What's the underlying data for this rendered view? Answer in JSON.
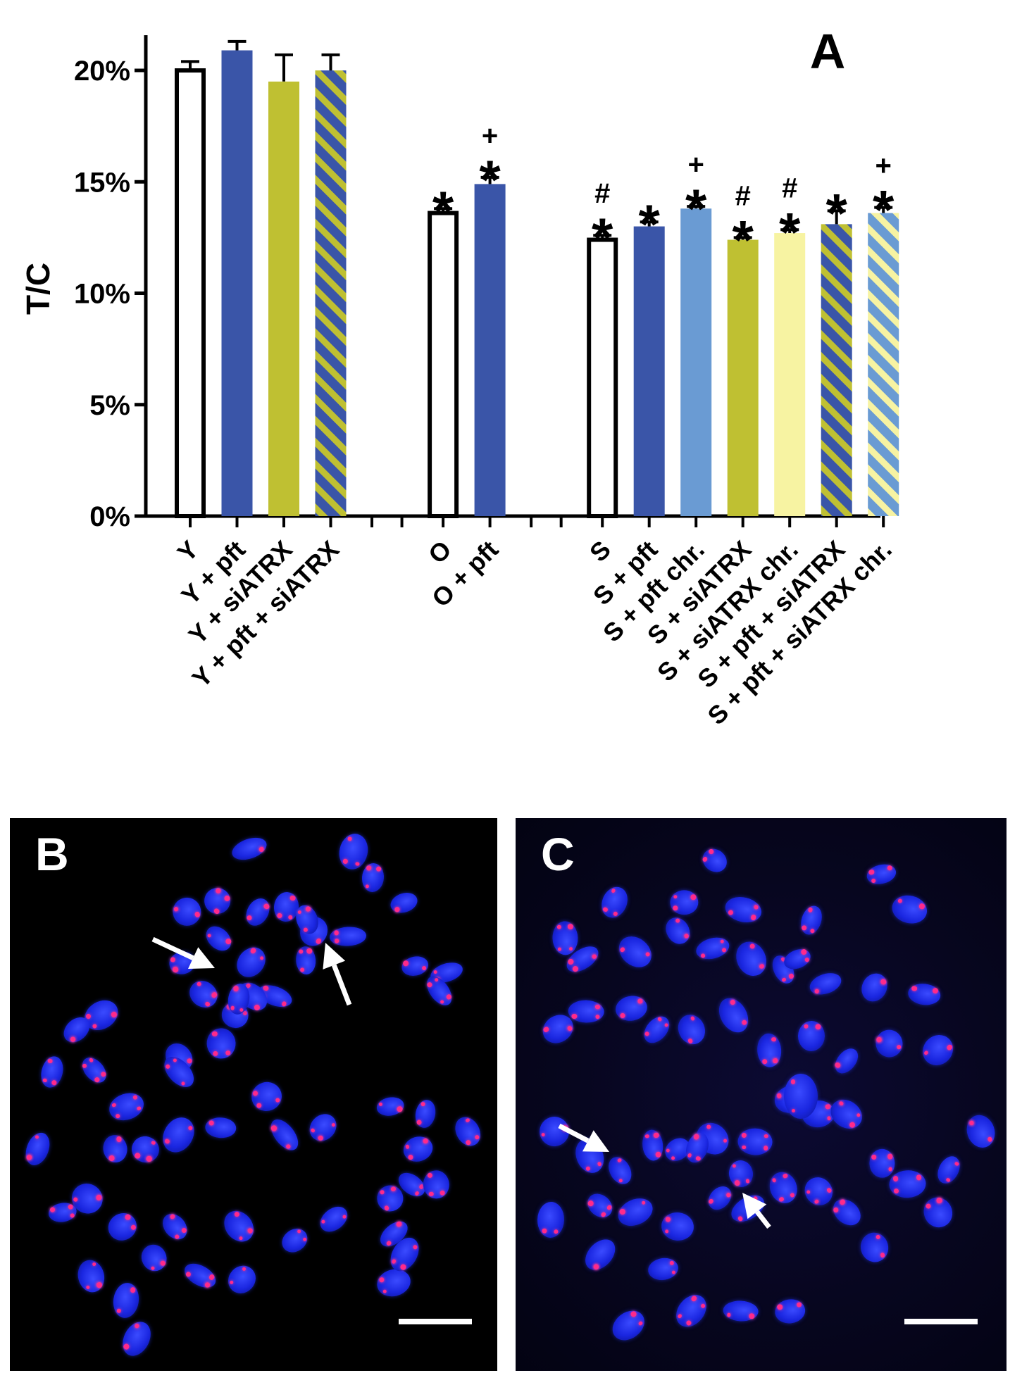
{
  "chart_data": {
    "type": "bar",
    "title": "A",
    "ylabel": "T/C",
    "ylim": [
      0,
      20
    ],
    "yticks": [
      "0%",
      "5%",
      "10%",
      "15%",
      "20%"
    ],
    "grid": false,
    "categories": [
      "Y",
      "Y + pft",
      "Y + siATRX",
      "Y + pft + siATRX",
      "O",
      "O + pft",
      "S",
      "S + pft",
      "S + pft chr.",
      "S + siATRX",
      "S + siATRX chr.",
      "S + pft + siATRX",
      "S + pft + siATRX chr."
    ],
    "groups": [
      [
        0,
        1,
        2,
        3
      ],
      [
        4,
        5
      ],
      [
        6,
        7,
        8,
        9,
        10,
        11,
        12
      ]
    ],
    "values": [
      20.0,
      20.9,
      19.5,
      20.0,
      13.6,
      14.9,
      12.4,
      13.0,
      13.8,
      12.4,
      12.7,
      13.1,
      13.6
    ],
    "errors": [
      0.4,
      0.4,
      1.2,
      0.7,
      0.2,
      0.3,
      0.2,
      0.2,
      0.1,
      0.1,
      0.15,
      0.6,
      0.25
    ],
    "annotations": [
      "",
      "",
      "",
      "",
      "*",
      "+\n*",
      "#\n*",
      "*",
      "+\n*",
      "#\n*",
      "#\n*",
      "*",
      "+\n*"
    ],
    "styles": [
      {
        "fill": "#ffffff",
        "stroke": "#000000",
        "hatch": ""
      },
      {
        "fill": "#3a55a8",
        "stroke": "#3a55a8",
        "hatch": ""
      },
      {
        "fill": "#bfc032",
        "stroke": "#bfc032",
        "hatch": ""
      },
      {
        "fill": "#3a55a8",
        "stroke": "#3a55a8",
        "hatch": "#bfc032"
      },
      {
        "fill": "#ffffff",
        "stroke": "#000000",
        "hatch": ""
      },
      {
        "fill": "#3a55a8",
        "stroke": "#3a55a8",
        "hatch": ""
      },
      {
        "fill": "#ffffff",
        "stroke": "#000000",
        "hatch": ""
      },
      {
        "fill": "#3a55a8",
        "stroke": "#3a55a8",
        "hatch": ""
      },
      {
        "fill": "#6a9bd3",
        "stroke": "#6a9bd3",
        "hatch": ""
      },
      {
        "fill": "#bfc032",
        "stroke": "#bfc032",
        "hatch": ""
      },
      {
        "fill": "#f7f3a2",
        "stroke": "#f7f3a2",
        "hatch": ""
      },
      {
        "fill": "#3a55a8",
        "stroke": "#3a55a8",
        "hatch": "#bfc032"
      },
      {
        "fill": "#6a9bd3",
        "stroke": "#6a9bd3",
        "hatch": "#f7f3a2"
      }
    ]
  },
  "panels": {
    "b": {
      "label": "B"
    },
    "c": {
      "label": "C"
    }
  },
  "colors": {
    "chromosome": "#2030e8",
    "telomere_signal": "#ff2a8a",
    "arrow": "#ffffff"
  }
}
